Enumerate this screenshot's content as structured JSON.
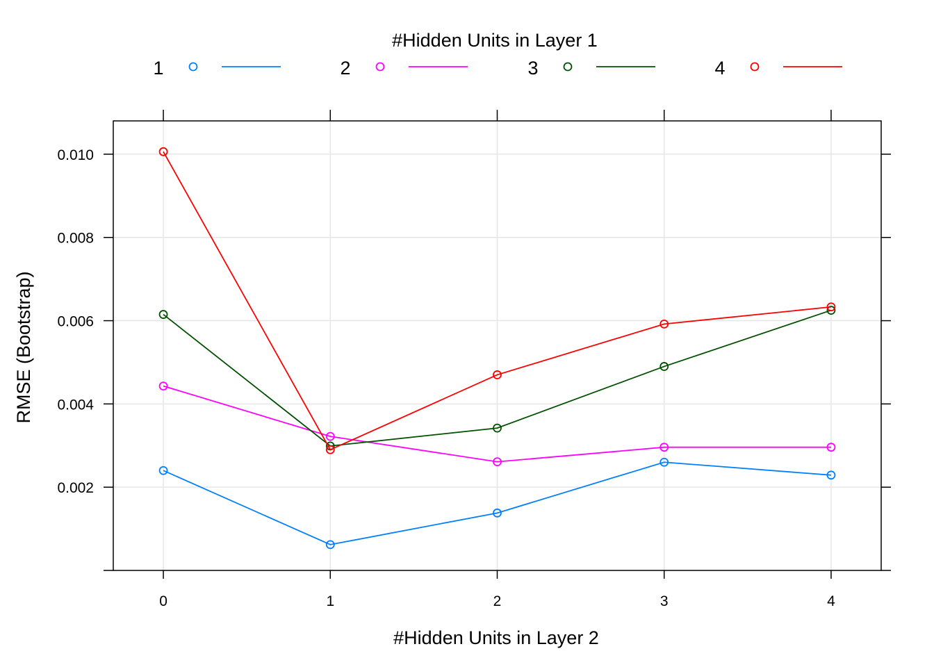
{
  "chart_data": {
    "type": "line",
    "xlabel": "#Hidden Units in Layer 2",
    "ylabel": "RMSE (Bootstrap)",
    "legend_title": "#Hidden Units in Layer 1",
    "legend_position": "top",
    "grid": true,
    "x": [
      0,
      1,
      2,
      3,
      4
    ],
    "x_ticks": [
      "0",
      "1",
      "2",
      "3",
      "4"
    ],
    "y_ticks": [
      "0.002",
      "0.004",
      "0.006",
      "0.008",
      "0.010"
    ],
    "xlim": [
      -0.3,
      4.3
    ],
    "ylim": [
      0.0,
      0.0108
    ],
    "series": [
      {
        "name": "1",
        "color": "#0080ff",
        "values": [
          0.0024,
          0.00062,
          0.00138,
          0.0026,
          0.00229
        ]
      },
      {
        "name": "2",
        "color": "#ff00ff",
        "values": [
          0.00443,
          0.00322,
          0.00261,
          0.00296,
          0.00296
        ]
      },
      {
        "name": "3",
        "color": "#005000",
        "values": [
          0.00615,
          0.00299,
          0.00342,
          0.0049,
          0.00625
        ]
      },
      {
        "name": "4",
        "color": "#ff0000",
        "values": [
          0.01006,
          0.0029,
          0.0047,
          0.00592,
          0.00633
        ]
      }
    ]
  }
}
